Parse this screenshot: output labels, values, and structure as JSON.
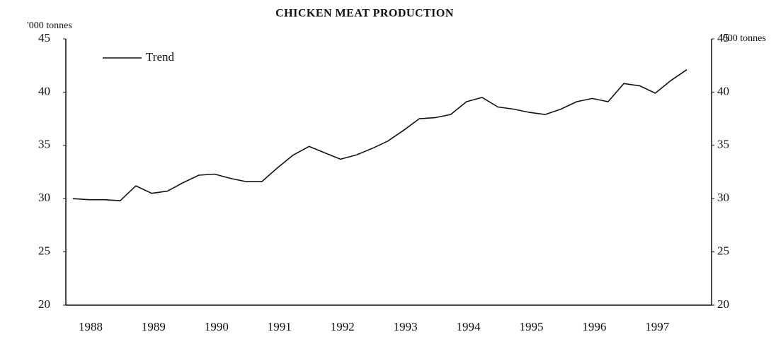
{
  "chart_data": {
    "type": "line",
    "title": "CHICKEN MEAT PRODUCTION",
    "y_label": "'000 tonnes",
    "y2_label": "'000 tonnes",
    "categories": [
      "1988",
      null,
      null,
      null,
      "1989",
      null,
      null,
      null,
      "1990",
      null,
      null,
      null,
      "1991",
      null,
      null,
      null,
      "1992",
      null,
      null,
      null,
      "1993",
      null,
      null,
      null,
      "1994",
      null,
      null,
      null,
      "1995",
      null,
      null,
      null,
      "1996",
      null,
      null,
      null,
      "1997",
      null,
      null,
      null
    ],
    "series": [
      {
        "name": "Trend",
        "color": "#111111",
        "values": [
          30.0,
          29.9,
          29.9,
          29.8,
          31.2,
          30.5,
          30.7,
          31.5,
          32.2,
          32.3,
          31.9,
          31.6,
          31.6,
          32.9,
          34.1,
          34.9,
          34.3,
          33.7,
          34.1,
          34.7,
          35.4,
          36.4,
          37.5,
          37.6,
          37.9,
          39.1,
          39.5,
          38.6,
          38.4,
          38.1,
          37.9,
          38.4,
          39.1,
          39.4,
          39.1,
          40.8,
          40.6,
          39.9,
          41.1,
          42.1
        ]
      }
    ],
    "ylim": [
      20,
      45
    ],
    "yticks": [
      20,
      25,
      30,
      35,
      40,
      45
    ],
    "y2lim": [
      20,
      45
    ],
    "y2ticks": [
      20,
      25,
      30,
      35,
      40,
      45
    ],
    "legend": "top-left",
    "grid": false
  }
}
